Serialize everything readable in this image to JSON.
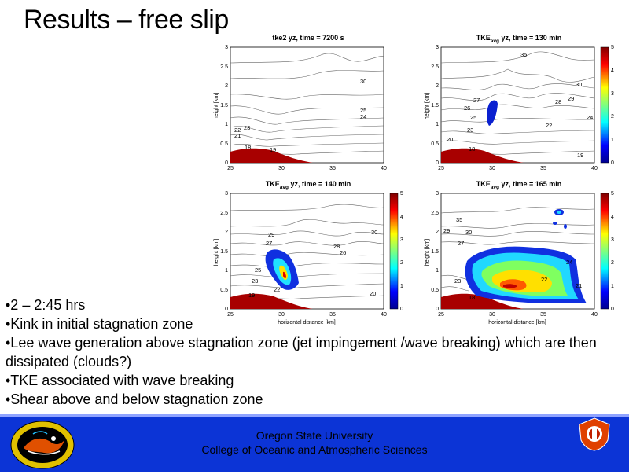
{
  "slide": {
    "title": "Results – free slip"
  },
  "panels": [
    {
      "title": "tke2 yz, time = 7200 s",
      "title_main": "tke2 yz, time = 7200 s",
      "title_sub": "",
      "title_rest": "",
      "ylabel": "height [km]",
      "xlabel": "",
      "yticks": [
        "0",
        "0.5",
        "1",
        "1.5",
        "2",
        "2.5",
        "3"
      ],
      "xticks": [
        "25",
        "30",
        "35",
        "40"
      ],
      "colorbar_ticks": [
        "0",
        "1",
        "2",
        "3",
        "4",
        "5"
      ],
      "contour_labels": [
        "30",
        "25",
        "24",
        "23",
        "22",
        "21",
        "19",
        "18"
      ],
      "has_tke": false
    },
    {
      "title": "TKEavg yz, time = 130 min",
      "title_main": "TKE",
      "title_sub": "avg",
      "title_rest": " yz, time = 130 min",
      "ylabel": "height [km]",
      "xlabel": "",
      "yticks": [
        "0",
        "0.5",
        "1",
        "1.5",
        "2",
        "2.5",
        "3"
      ],
      "xticks": [
        "25",
        "30",
        "35",
        "40"
      ],
      "colorbar_ticks": [
        "0",
        "1",
        "2",
        "3",
        "4",
        "5"
      ],
      "contour_labels": [
        "35",
        "30",
        "29",
        "28",
        "27",
        "26",
        "25",
        "24",
        "23",
        "22",
        "20",
        "19",
        "18"
      ],
      "has_tke": true
    },
    {
      "title": "TKEavg yz, time = 140 min",
      "title_main": "TKE",
      "title_sub": "avg",
      "title_rest": " yz, time = 140 min",
      "ylabel": "height [km]",
      "xlabel": "horizontal distance [km]",
      "yticks": [
        "0",
        "0.5",
        "1",
        "1.5",
        "2",
        "2.5",
        "3"
      ],
      "xticks": [
        "25",
        "30",
        "35",
        "40"
      ],
      "colorbar_ticks": [
        "0",
        "1",
        "2",
        "3",
        "4",
        "5"
      ],
      "contour_labels": [
        "30",
        "29",
        "28",
        "27",
        "26",
        "25",
        "23",
        "22",
        "20",
        "19"
      ],
      "has_tke": true
    },
    {
      "title": "TKEavg yz, time = 165 min",
      "title_main": "TKE",
      "title_sub": "avg",
      "title_rest": " yz, time = 165 min",
      "ylabel": "height [km]",
      "xlabel": "horizontal distance [km]",
      "yticks": [
        "0",
        "0.5",
        "1",
        "1.5",
        "2",
        "2.5",
        "3"
      ],
      "xticks": [
        "25",
        "30",
        "35",
        "40"
      ],
      "colorbar_ticks": [
        "0",
        "1",
        "2",
        "3",
        "4",
        "5"
      ],
      "contour_labels": [
        "35",
        "30",
        "29",
        "27",
        "24",
        "23",
        "22",
        "21",
        "18"
      ],
      "has_tke": true
    }
  ],
  "bullets": [
    "•2 – 2:45 hrs",
    "•Kink in initial stagnation zone",
    "•Lee wave generation above stagnation zone (jet impingement /wave breaking) which are then dissipated (clouds?)",
    "•TKE associated with wave breaking",
    "•Shear above and below stagnation zone"
  ],
  "footer": {
    "university": "Oregon State University",
    "college": "College of Oceanic and Atmospheric Sciences",
    "bg_color": "#0c34d6"
  },
  "icons": {
    "left_logo": "college-emblem-icon",
    "right_logo": "university-seal-icon"
  }
}
